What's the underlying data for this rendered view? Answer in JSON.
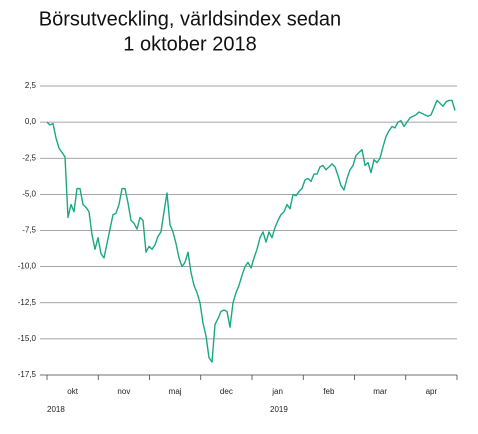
{
  "chart_data": {
    "type": "line",
    "title": [
      "Börsutveckling, världsindex sedan",
      "1 oktober 2018"
    ],
    "months": [
      "okt",
      "nov",
      "maj",
      "dec",
      "jan",
      "feb",
      "mar",
      "apr"
    ],
    "years": [
      "2018",
      "2019"
    ],
    "color": "#1aa882",
    "grid": true,
    "ylim": [
      -17.5,
      2.5
    ],
    "yticks": [
      {
        "value": 2.5,
        "label": "2,5"
      },
      {
        "value": 0,
        "label": "0,0"
      },
      {
        "value": -2.5,
        "label": "-2,5"
      },
      {
        "value": -5,
        "label": "-5,0"
      },
      {
        "value": -7.5,
        "label": "-7,5"
      },
      {
        "value": -10,
        "label": "-10,0"
      },
      {
        "value": -12.5,
        "label": "-12,5"
      },
      {
        "value": -15,
        "label": "-15,0"
      },
      {
        "value": -17.5,
        "label": "-17,5"
      }
    ],
    "values": [
      0.0,
      -0.2,
      -0.1,
      -1.1,
      -1.8,
      -2.1,
      -2.4,
      -6.6,
      -5.7,
      -6.2,
      -4.6,
      -4.6,
      -5.7,
      -5.9,
      -6.2,
      -7.8,
      -8.8,
      -8.0,
      -9.1,
      -9.4,
      -8.4,
      -7.4,
      -6.4,
      -6.3,
      -5.7,
      -4.6,
      -4.6,
      -5.6,
      -6.8,
      -7.0,
      -7.4,
      -6.6,
      -6.8,
      -9.0,
      -8.6,
      -8.8,
      -8.5,
      -7.9,
      -7.6,
      -6.2,
      -4.9,
      -7.1,
      -7.6,
      -8.4,
      -9.4,
      -10.0,
      -9.7,
      -9.0,
      -10.4,
      -11.3,
      -11.8,
      -12.5,
      -13.9,
      -14.8,
      -16.3,
      -16.6,
      -14.0,
      -13.6,
      -13.1,
      -13.0,
      -13.1,
      -14.2,
      -12.5,
      -11.8,
      -11.3,
      -10.6,
      -10.0,
      -9.7,
      -10.1,
      -9.4,
      -8.8,
      -8.0,
      -7.6,
      -8.3,
      -7.6,
      -8.0,
      -7.3,
      -6.8,
      -6.4,
      -6.2,
      -5.7,
      -6.0,
      -5.0,
      -5.1,
      -4.8,
      -4.6,
      -4.0,
      -3.9,
      -4.1,
      -3.6,
      -3.6,
      -3.1,
      -3.0,
      -3.3,
      -3.1,
      -2.9,
      -3.1,
      -3.7,
      -4.4,
      -4.7,
      -3.9,
      -3.3,
      -3.0,
      -2.3,
      -2.1,
      -1.9,
      -3.0,
      -2.8,
      -3.5,
      -2.6,
      -2.8,
      -2.5,
      -1.7,
      -1.0,
      -0.6,
      -0.3,
      -0.4,
      0.0,
      0.1,
      -0.3,
      0.0,
      0.3,
      0.4,
      0.5,
      0.7,
      0.6,
      0.5,
      0.4,
      0.5,
      1.0,
      1.5,
      1.3,
      1.1,
      1.4,
      1.5,
      1.5,
      0.8
    ]
  }
}
